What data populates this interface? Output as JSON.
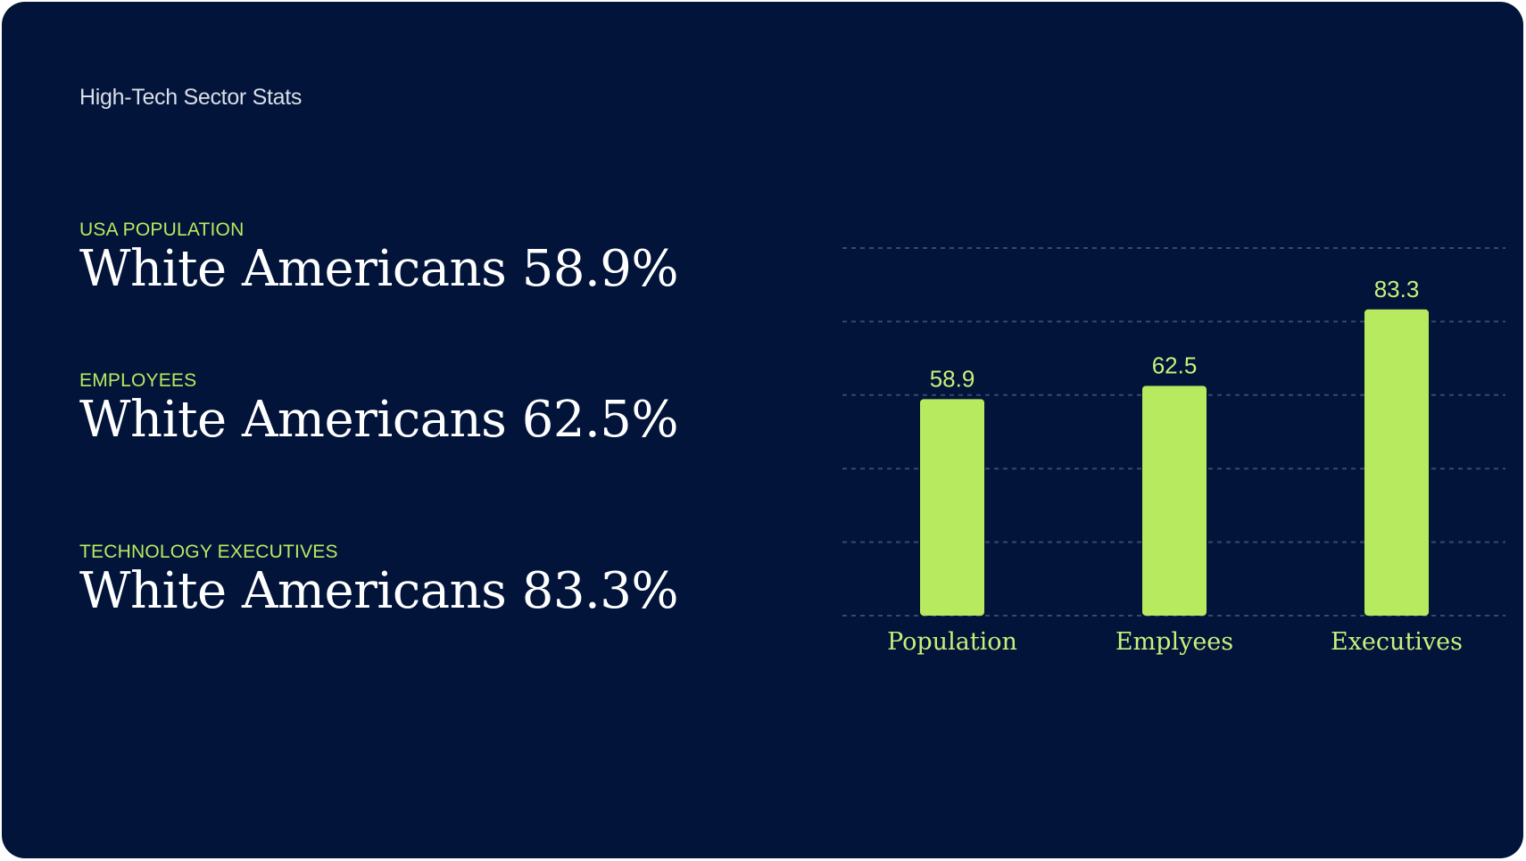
{
  "slide": {
    "title": "High-Tech Sector Stats"
  },
  "stats": [
    {
      "label": "USA POPULATION",
      "value": "White Americans 58.9%"
    },
    {
      "label": "EMPLOYEES",
      "value": "White Americans 62.5%"
    },
    {
      "label": "TECHNOLOGY EXECUTIVES",
      "value": "White Americans 83.3%"
    }
  ],
  "colors": {
    "background": "#02143a",
    "accent": "#b8ea5f",
    "text": "#ffffff",
    "grid": "#3a4866"
  },
  "chart_data": {
    "type": "bar",
    "categories": [
      "Population",
      "Emplyees",
      "Executives"
    ],
    "values": [
      58.9,
      62.5,
      83.3
    ],
    "value_labels": [
      "58.9",
      "62.5",
      "83.3"
    ],
    "title": "",
    "xlabel": "",
    "ylabel": "",
    "ylim": [
      0,
      100
    ],
    "grid": true,
    "grid_style": "dashed",
    "legend": "none"
  }
}
